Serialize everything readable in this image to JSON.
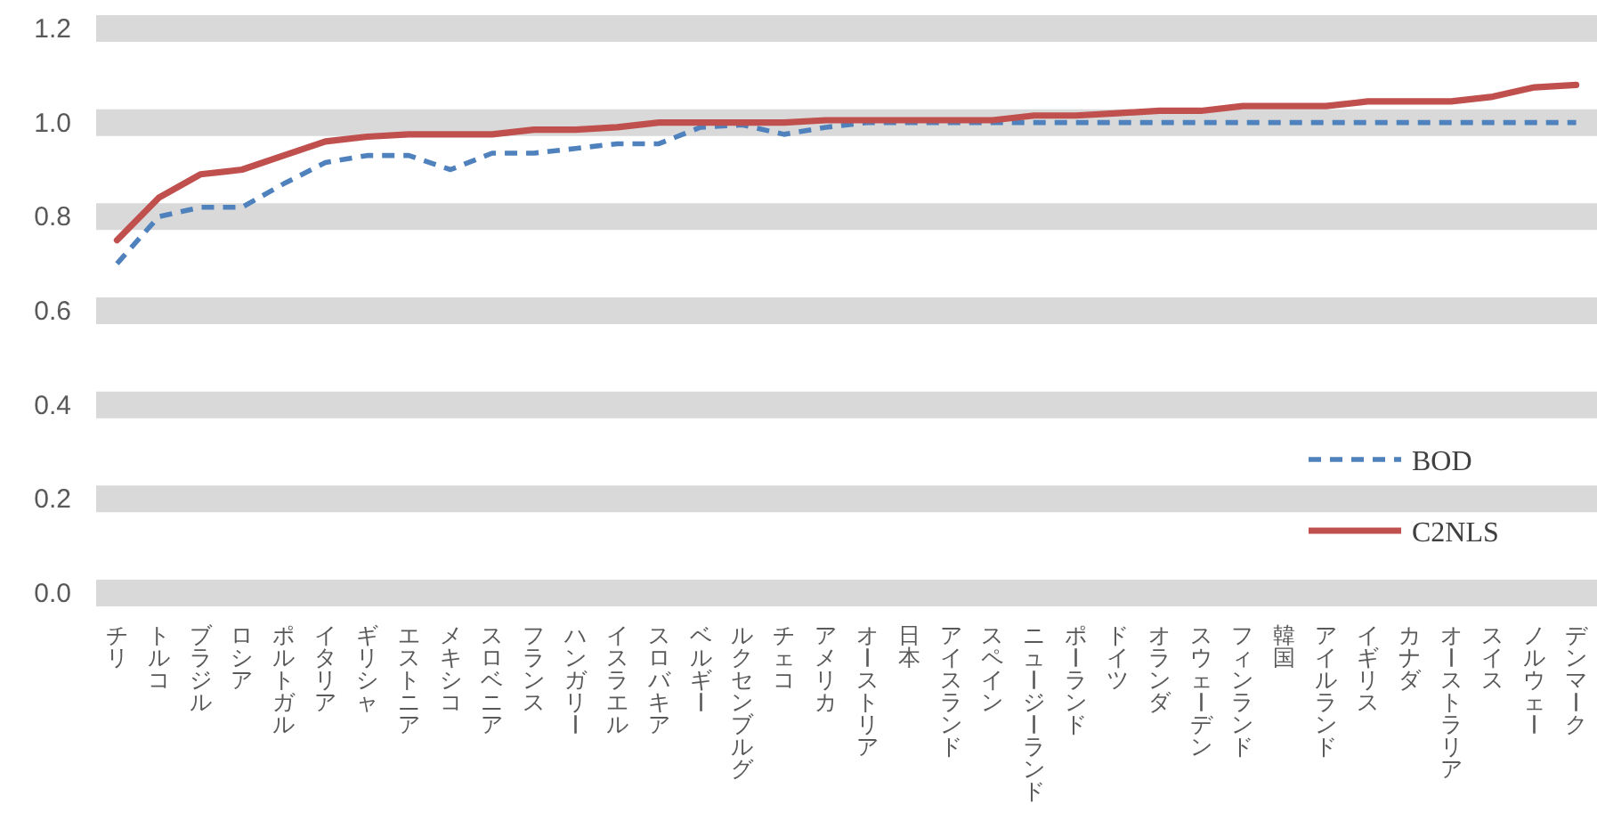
{
  "chart_data": {
    "type": "line",
    "categories": [
      "チリ",
      "トルコ",
      "ブラジル",
      "ロシア",
      "ポルトガル",
      "イタリア",
      "ギリシャ",
      "エストニア",
      "メキシコ",
      "スロベニア",
      "フランス",
      "ハンガリー",
      "イスラエル",
      "スロバキア",
      "ベルギー",
      "ルクセンブルグ",
      "チェコ",
      "アメリカ",
      "オーストリア",
      "日本",
      "アイスランド",
      "スペイン",
      "ニュージーランド",
      "ポーランド",
      "ドイツ",
      "オランダ",
      "スウェーデン",
      "フィンランド",
      "韓国",
      "アイルランド",
      "イギリス",
      "カナダ",
      "オーストラリア",
      "スイス",
      "ノルウェー",
      "デンマーク"
    ],
    "series": [
      {
        "name": "BOD",
        "color": "#4f81bd",
        "line_style": "dashed",
        "values": [
          0.7,
          0.8,
          0.82,
          0.82,
          0.87,
          0.915,
          0.93,
          0.93,
          0.9,
          0.935,
          0.935,
          0.945,
          0.955,
          0.955,
          0.99,
          0.995,
          0.975,
          0.99,
          1.0,
          1.0,
          1.0,
          1.0,
          1.0,
          1.0,
          1.0,
          1.0,
          1.0,
          1.0,
          1.0,
          1.0,
          1.0,
          1.0,
          1.0,
          1.0,
          1.0,
          1.0
        ]
      },
      {
        "name": "C2NLS",
        "color": "#c0504d",
        "line_style": "solid",
        "values": [
          0.75,
          0.84,
          0.89,
          0.9,
          0.93,
          0.96,
          0.97,
          0.975,
          0.975,
          0.975,
          0.985,
          0.985,
          0.99,
          1.0,
          1.0,
          1.0,
          1.0,
          1.005,
          1.005,
          1.005,
          1.005,
          1.005,
          1.015,
          1.015,
          1.02,
          1.025,
          1.025,
          1.035,
          1.035,
          1.035,
          1.045,
          1.045,
          1.045,
          1.055,
          1.075,
          1.08
        ]
      }
    ],
    "ylim": [
      0,
      1.2
    ],
    "yticks": [
      {
        "value": 0,
        "label": "0.0"
      },
      {
        "value": 0.2,
        "label": "0.2"
      },
      {
        "value": 0.4,
        "label": "0.4"
      },
      {
        "value": 0.6,
        "label": "0.6"
      },
      {
        "value": 0.8,
        "label": "0.8"
      },
      {
        "value": 1.0,
        "label": "1.0"
      },
      {
        "value": 1.2,
        "label": "1.2"
      }
    ],
    "grid": "y",
    "legend": "right",
    "marker": "none"
  }
}
